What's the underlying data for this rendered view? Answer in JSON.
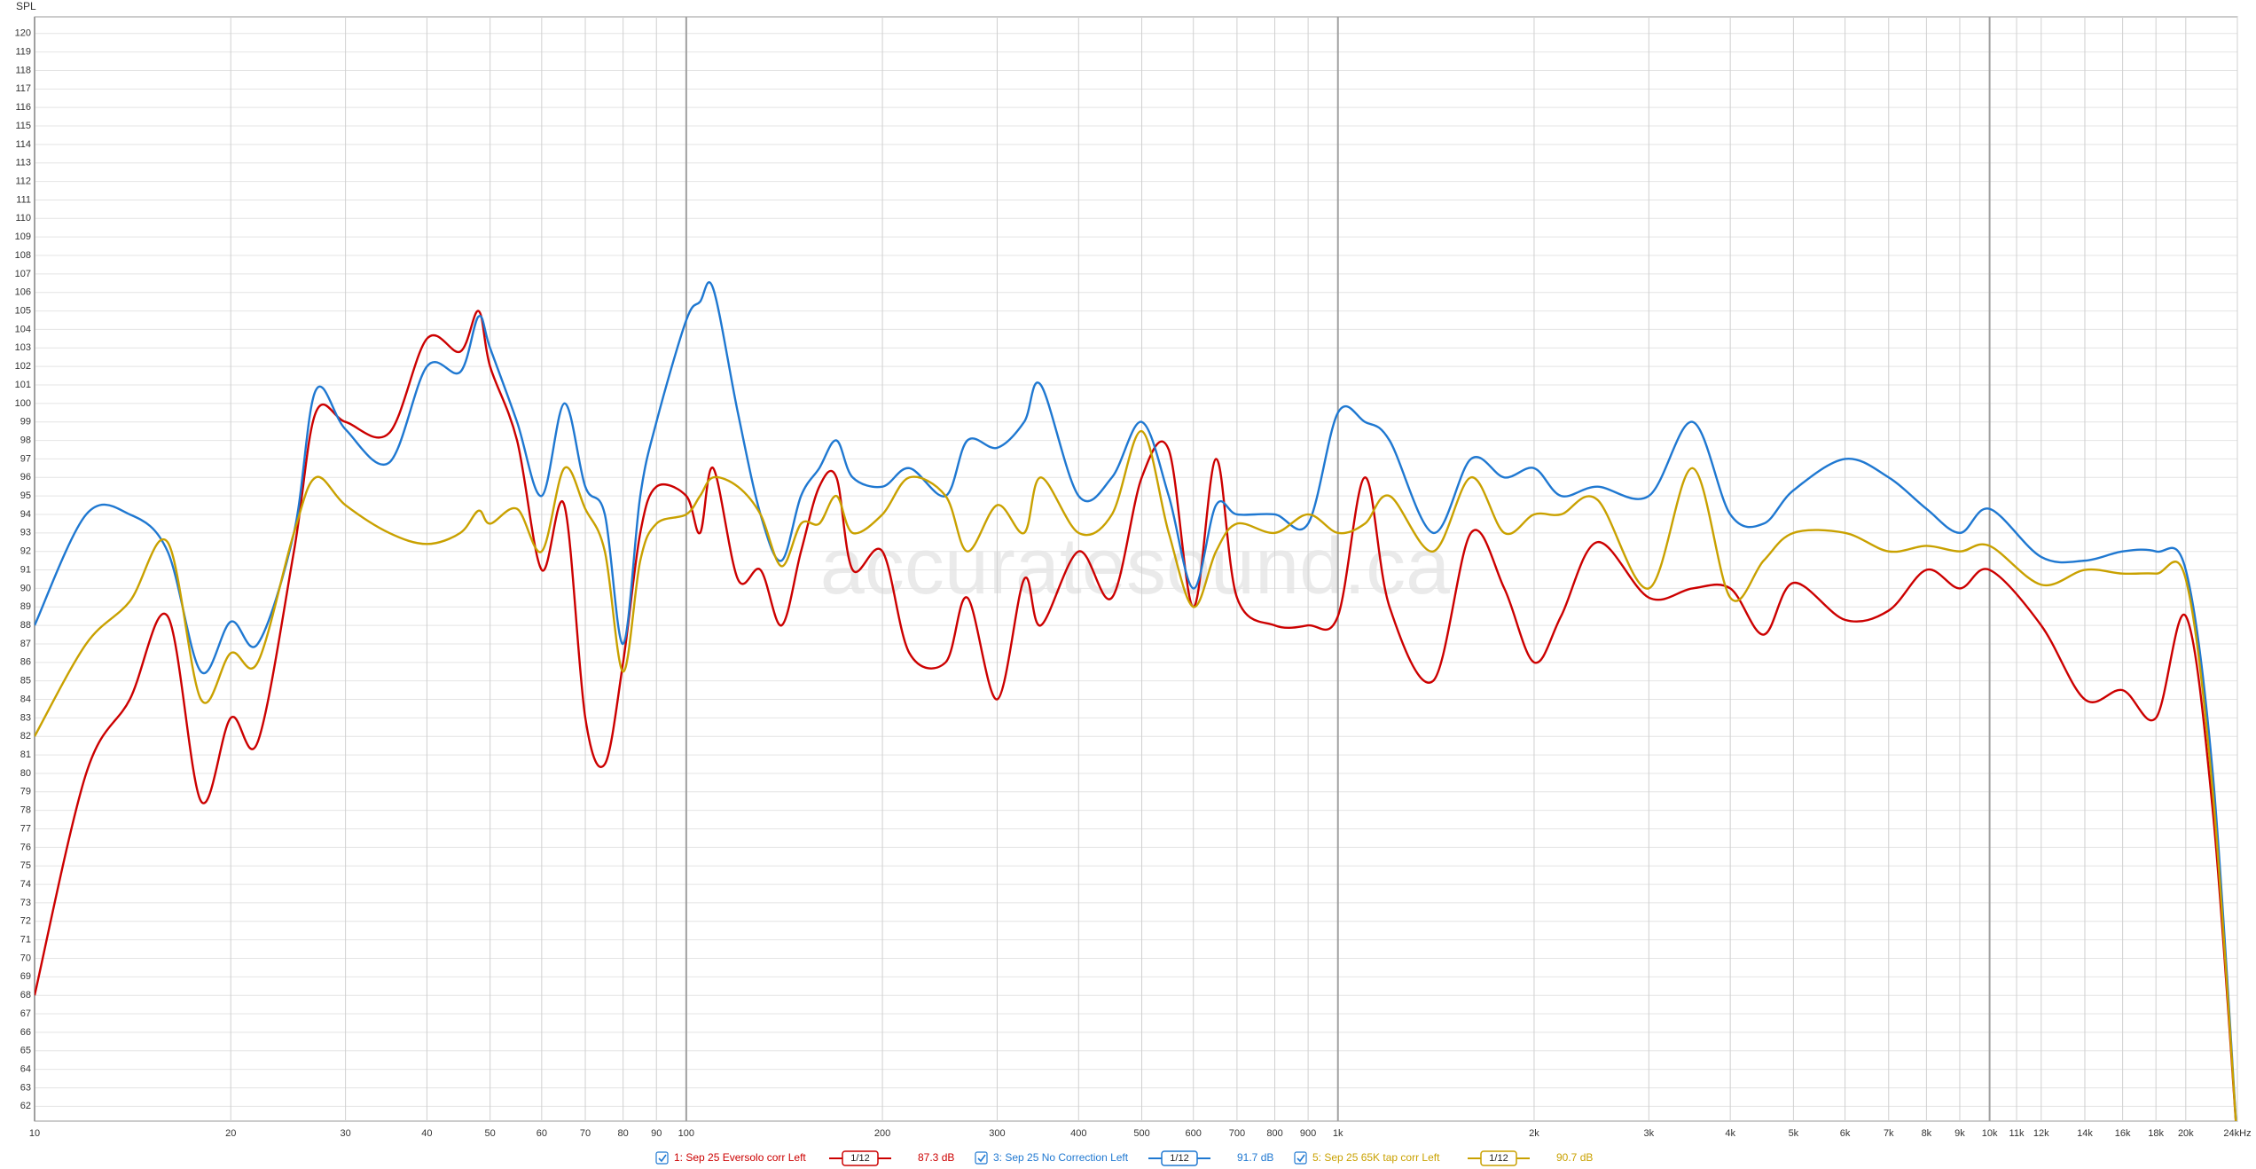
{
  "chart_data": {
    "type": "line",
    "y_label": "SPL",
    "watermark": "accuratesound.ca",
    "log_x": true,
    "grid": true,
    "xlim": [
      10,
      24000
    ],
    "ylim": [
      61.2,
      120.9
    ],
    "xticks": [
      10,
      20,
      30,
      40,
      50,
      60,
      70,
      80,
      90,
      100,
      200,
      300,
      400,
      500,
      600,
      700,
      800,
      900,
      {
        "value": 1000,
        "label": "1k"
      },
      {
        "value": 2000,
        "label": "2k"
      },
      {
        "value": 3000,
        "label": "3k"
      },
      {
        "value": 4000,
        "label": "4k"
      },
      {
        "value": 5000,
        "label": "5k"
      },
      {
        "value": 6000,
        "label": "6k"
      },
      {
        "value": 7000,
        "label": "7k"
      },
      {
        "value": 8000,
        "label": "8k"
      },
      {
        "value": 9000,
        "label": "9k"
      },
      {
        "value": 10000,
        "label": "10k"
      },
      {
        "value": 11000,
        "label": "11k"
      },
      {
        "value": 12000,
        "label": "12k"
      },
      {
        "value": 14000,
        "label": "14k"
      },
      {
        "value": 16000,
        "label": "16k"
      },
      {
        "value": 18000,
        "label": "18k"
      },
      {
        "value": 20000,
        "label": "20k"
      },
      {
        "value": 24000,
        "label": "24kHz"
      }
    ],
    "yticks": [
      62,
      63,
      64,
      65,
      66,
      67,
      68,
      69,
      70,
      71,
      72,
      73,
      74,
      75,
      76,
      77,
      78,
      79,
      80,
      81,
      82,
      83,
      84,
      85,
      86,
      87,
      88,
      89,
      90,
      91,
      92,
      93,
      94,
      95,
      96,
      97,
      98,
      99,
      100,
      101,
      102,
      103,
      104,
      105,
      106,
      107,
      108,
      109,
      110,
      111,
      112,
      113,
      114,
      115,
      116,
      117,
      118,
      119,
      120
    ],
    "x": [
      10,
      12,
      14,
      16,
      18,
      20,
      22,
      25,
      27,
      30,
      35,
      40,
      45,
      48,
      50,
      55,
      60,
      65,
      70,
      75,
      80,
      85,
      90,
      100,
      105,
      110,
      120,
      130,
      140,
      150,
      160,
      170,
      180,
      200,
      220,
      250,
      270,
      300,
      330,
      350,
      400,
      450,
      500,
      550,
      600,
      650,
      700,
      800,
      900,
      1000,
      1100,
      1200,
      1400,
      1600,
      1800,
      2000,
      2200,
      2500,
      3000,
      3500,
      4000,
      4500,
      5000,
      6000,
      7000,
      8000,
      9000,
      10000,
      12000,
      14000,
      16000,
      18000,
      20000,
      22000,
      24000
    ],
    "series": [
      {
        "name": "1: Sep 25 Eversolo corr Left",
        "color": "#cc0000",
        "smoothing": "1/12",
        "level": "87.3 dB",
        "values": [
          68,
          80,
          84,
          88.5,
          78.5,
          83,
          81.7,
          92,
          99.5,
          99,
          98.4,
          103.5,
          102.8,
          105,
          102,
          98,
          91,
          94.5,
          83,
          80.5,
          86,
          93,
          95.5,
          95,
          93,
          96.5,
          90.5,
          91,
          88,
          92,
          95.5,
          96,
          91,
          92,
          86.5,
          86,
          89.5,
          84,
          90.5,
          88,
          92,
          89.5,
          96,
          97.5,
          89,
          97,
          89.5,
          88,
          88,
          88.5,
          96,
          89,
          85,
          93,
          90,
          86,
          88.5,
          92.5,
          89.5,
          90,
          90,
          87.5,
          90.3,
          88.3,
          88.8,
          91,
          90,
          91,
          88,
          84,
          84.5,
          83,
          88.5,
          78,
          60
        ]
      },
      {
        "name": "3: Sep 25 No Correction Left",
        "color": "#1f78d1",
        "smoothing": "1/12",
        "level": "91.7 dB",
        "values": [
          88,
          94,
          94,
          92,
          85.5,
          88.2,
          87,
          93,
          100.7,
          98.6,
          96.8,
          102,
          101.7,
          104.7,
          103,
          99,
          95,
          100,
          95.5,
          94,
          87,
          95,
          99,
          104.5,
          105.5,
          106.2,
          99.5,
          94,
          91.5,
          95,
          96.5,
          98,
          96,
          95.5,
          96.5,
          95,
          98,
          97.6,
          99,
          101,
          95,
          96,
          99,
          95,
          90,
          94.5,
          94,
          94,
          93.5,
          99.5,
          99,
          98,
          93,
          97,
          96,
          96.5,
          95,
          95.5,
          95,
          99,
          94,
          93.5,
          95.3,
          97,
          96,
          94.3,
          93,
          94.3,
          91.7,
          91.5,
          92,
          92,
          91,
          80,
          60
        ]
      },
      {
        "name": "5: Sep 25 65K tap corr Left",
        "color": "#c9a100",
        "smoothing": "1/12",
        "level": "90.7 dB",
        "values": [
          82,
          87,
          89.3,
          92.5,
          84,
          86.5,
          86,
          93,
          96,
          94.5,
          93,
          92.4,
          93,
          94.2,
          93.5,
          94.3,
          92,
          96.5,
          94.3,
          92,
          85.5,
          91.5,
          93.5,
          94,
          95,
          96,
          95.5,
          94,
          91.2,
          93.5,
          93.5,
          95,
          93,
          94,
          96,
          95,
          92,
          94.5,
          93,
          96,
          93,
          94,
          98.5,
          93,
          89,
          92,
          93.5,
          93,
          94,
          93,
          93.5,
          95,
          92,
          96,
          93,
          94,
          94,
          94.8,
          90,
          96.5,
          89.5,
          91.5,
          93,
          93,
          92,
          92.3,
          92,
          92.3,
          90.2,
          91,
          90.8,
          90.8,
          90.5,
          79,
          60
        ]
      }
    ]
  }
}
